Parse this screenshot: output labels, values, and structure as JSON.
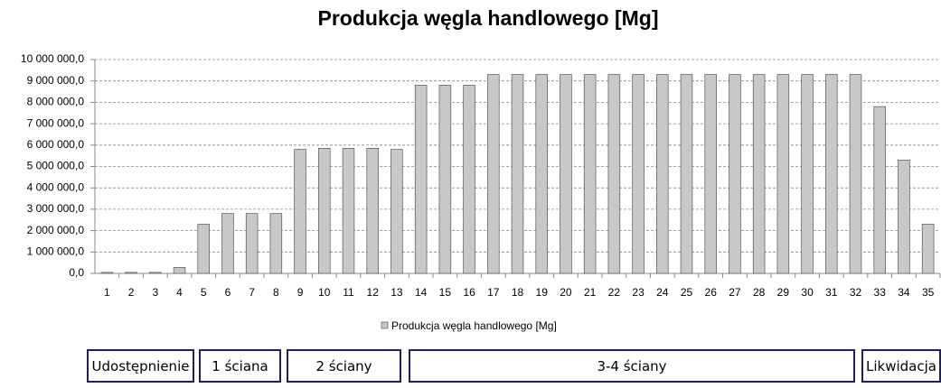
{
  "chart_data": {
    "type": "bar",
    "title": "Produkcja węgla handlowego [Mg]",
    "categories": [
      "1",
      "2",
      "3",
      "4",
      "5",
      "6",
      "7",
      "8",
      "9",
      "10",
      "11",
      "12",
      "13",
      "14",
      "15",
      "16",
      "17",
      "18",
      "19",
      "20",
      "21",
      "22",
      "23",
      "24",
      "25",
      "26",
      "27",
      "28",
      "29",
      "30",
      "31",
      "32",
      "33",
      "34",
      "35"
    ],
    "series": [
      {
        "name": "Produkcja węgla handlowego [Mg]",
        "color": "#c8c8c8",
        "values": [
          50000,
          50000,
          50000,
          280000,
          2300000,
          2800000,
          2800000,
          2800000,
          5800000,
          5850000,
          5850000,
          5850000,
          5800000,
          8800000,
          8800000,
          8800000,
          9300000,
          9300000,
          9300000,
          9300000,
          9300000,
          9300000,
          9300000,
          9300000,
          9300000,
          9300000,
          9300000,
          9300000,
          9300000,
          9300000,
          9300000,
          9300000,
          7800000,
          5300000,
          2300000
        ]
      }
    ],
    "ylim": [
      0,
      10000000
    ],
    "yticks": [
      {
        "value": 0,
        "label": "0,0"
      },
      {
        "value": 1000000,
        "label": "1 000 000,0"
      },
      {
        "value": 2000000,
        "label": "2 000 000,0"
      },
      {
        "value": 3000000,
        "label": "3 000 000,0"
      },
      {
        "value": 4000000,
        "label": "4 000 000,0"
      },
      {
        "value": 5000000,
        "label": "5 000 000,0"
      },
      {
        "value": 6000000,
        "label": "6 000 000,0"
      },
      {
        "value": 7000000,
        "label": "7 000 000,0"
      },
      {
        "value": 8000000,
        "label": "8 000 000,0"
      },
      {
        "value": 9000000,
        "label": "9 000 000,0"
      },
      {
        "value": 10000000,
        "label": "10 000 000,0"
      }
    ],
    "grid": true,
    "phases": [
      "Udostępnienie",
      "1 ściana",
      "2 ściany",
      "3-4 ściany",
      "Likwidacja"
    ]
  }
}
